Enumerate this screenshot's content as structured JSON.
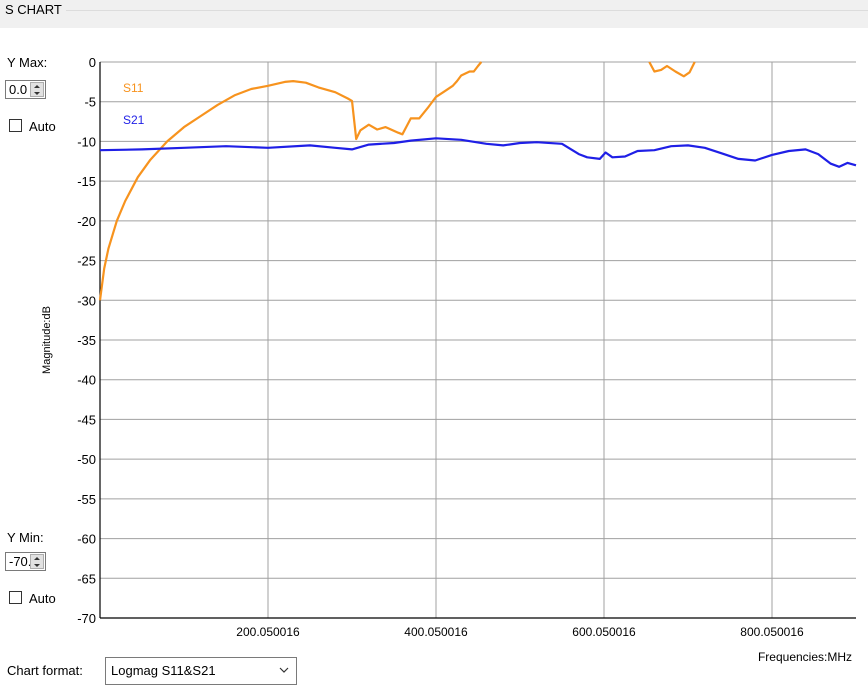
{
  "group_title": "S CHART",
  "controls": {
    "ymax_label": "Y Max:",
    "ymax_value": "0.0",
    "ymin_label": "Y Min:",
    "ymin_value": "-70.0",
    "auto_label": "Auto",
    "auto_max_checked": false,
    "auto_min_checked": false,
    "chart_format_label": "Chart format:",
    "chart_format_value": "Logmag S11&S21"
  },
  "colors": {
    "s11": "#f7931e",
    "s21": "#1f1fe6",
    "grid": "#a0a0a0"
  },
  "chart_data": {
    "type": "line",
    "ylabel": "Magnitude:dB",
    "xlabel": "Frequencies:MHz",
    "ylim": [
      -70,
      0
    ],
    "xlim": [
      0.050016,
      900.050016
    ],
    "y_ticks": [
      "0",
      "-5",
      "-10",
      "-15",
      "-20",
      "-25",
      "-30",
      "-35",
      "-40",
      "-45",
      "-50",
      "-55",
      "-60",
      "-65",
      "-70"
    ],
    "x_ticks": [
      {
        "value": 200.050016,
        "label": "200.050016"
      },
      {
        "value": 400.050016,
        "label": "400.050016"
      },
      {
        "value": 600.050016,
        "label": "600.050016"
      },
      {
        "value": 800.050016,
        "label": "800.050016"
      }
    ],
    "grid": true,
    "series": [
      {
        "name": "S11",
        "points": [
          [
            0,
            -30
          ],
          [
            5,
            -26
          ],
          [
            10,
            -23.5
          ],
          [
            20,
            -20
          ],
          [
            30,
            -17.5
          ],
          [
            45,
            -14.5
          ],
          [
            60,
            -12.3
          ],
          [
            80,
            -10
          ],
          [
            100,
            -8.2
          ],
          [
            120,
            -6.8
          ],
          [
            140,
            -5.4
          ],
          [
            160,
            -4.2
          ],
          [
            180,
            -3.4
          ],
          [
            200,
            -3
          ],
          [
            220,
            -2.5
          ],
          [
            230,
            -2.4
          ],
          [
            245,
            -2.6
          ],
          [
            260,
            -3.2
          ],
          [
            280,
            -3.8
          ],
          [
            295,
            -4.6
          ],
          [
            300,
            -4.9
          ],
          [
            305,
            -9.7
          ],
          [
            310,
            -8.6
          ],
          [
            320,
            -7.9
          ],
          [
            330,
            -8.5
          ],
          [
            340,
            -8.2
          ],
          [
            355,
            -8.9
          ],
          [
            360,
            -9.1
          ],
          [
            370,
            -7.1
          ],
          [
            380,
            -7.1
          ],
          [
            390,
            -5.8
          ],
          [
            400,
            -4.4
          ],
          [
            410,
            -3.7
          ],
          [
            420,
            -3
          ],
          [
            425,
            -2.4
          ],
          [
            430,
            -1.7
          ],
          [
            440,
            -1.2
          ],
          [
            445,
            -1.2
          ],
          [
            450,
            -0.5
          ],
          [
            454,
            0
          ]
        ],
        "points_segment2": [
          [
            654,
            0
          ],
          [
            660,
            -1.2
          ],
          [
            668,
            -1
          ],
          [
            675,
            -0.5
          ],
          [
            685,
            -1.2
          ],
          [
            695,
            -1.8
          ],
          [
            702,
            -1.3
          ],
          [
            708,
            0
          ]
        ]
      },
      {
        "name": "S21",
        "points": [
          [
            0,
            -11.1
          ],
          [
            50,
            -11
          ],
          [
            100,
            -10.8
          ],
          [
            150,
            -10.6
          ],
          [
            200,
            -10.8
          ],
          [
            250,
            -10.5
          ],
          [
            280,
            -10.8
          ],
          [
            300,
            -11
          ],
          [
            320,
            -10.4
          ],
          [
            350,
            -10.2
          ],
          [
            370,
            -9.9
          ],
          [
            400,
            -9.6
          ],
          [
            430,
            -9.8
          ],
          [
            460,
            -10.3
          ],
          [
            480,
            -10.5
          ],
          [
            500,
            -10.2
          ],
          [
            520,
            -10.1
          ],
          [
            550,
            -10.3
          ],
          [
            570,
            -11.6
          ],
          [
            580,
            -12
          ],
          [
            595,
            -12.2
          ],
          [
            602,
            -11.4
          ],
          [
            610,
            -12
          ],
          [
            625,
            -11.9
          ],
          [
            640,
            -11.2
          ],
          [
            660,
            -11.1
          ],
          [
            680,
            -10.6
          ],
          [
            700,
            -10.5
          ],
          [
            720,
            -10.8
          ],
          [
            740,
            -11.5
          ],
          [
            760,
            -12.2
          ],
          [
            780,
            -12.4
          ],
          [
            800,
            -11.7
          ],
          [
            820,
            -11.2
          ],
          [
            840,
            -11
          ],
          [
            855,
            -11.6
          ],
          [
            870,
            -12.8
          ],
          [
            880,
            -13.2
          ],
          [
            890,
            -12.7
          ],
          [
            900,
            -13
          ]
        ]
      }
    ]
  }
}
